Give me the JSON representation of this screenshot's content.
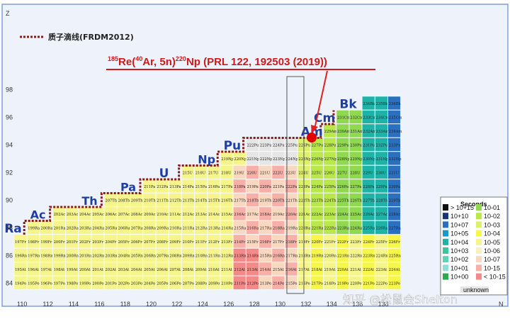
{
  "chart_data": {
    "type": "heatmap",
    "title": "",
    "xlabel": "N",
    "ylabel": "Z",
    "x_ticks": [
      "110",
      "112",
      "114",
      "116",
      "118",
      "120",
      "122",
      "124",
      "126",
      "128",
      "130",
      "132",
      "134",
      "136",
      "138"
    ],
    "y_ticks": [
      "84",
      "86",
      "88",
      "90",
      "92",
      "94",
      "96",
      "98"
    ],
    "highlight_tick": "124",
    "legend_title": "Seconds",
    "legend_entries": [
      {
        "label": "> 10+15",
        "color": "#111111"
      },
      {
        "label": "10+10",
        "color": "#17347a"
      },
      {
        "label": "10+07",
        "color": "#2a6fc0"
      },
      {
        "label": "10+05",
        "color": "#1a98c8"
      },
      {
        "label": "10+04",
        "color": "#1fb3a8"
      },
      {
        "label": "10+03",
        "color": "#3cc79a"
      },
      {
        "label": "10+02",
        "color": "#5fd3b8"
      },
      {
        "label": "10+01",
        "color": "#8fdcd8"
      },
      {
        "label": "10+00",
        "color": "#2ea84a"
      },
      {
        "label": "10-01",
        "color": "#8fd84f"
      },
      {
        "label": "10-02",
        "color": "#b9e84a"
      },
      {
        "label": "10-03",
        "color": "#ddf06a"
      },
      {
        "label": "10-04",
        "color": "#f7f74a"
      },
      {
        "label": "10-05",
        "color": "#f5f58c"
      },
      {
        "label": "10-06",
        "color": "#f8f0c0"
      },
      {
        "label": "10-07",
        "color": "#f8d8c0"
      },
      {
        "label": "10-15",
        "color": "#f6b0a8"
      },
      {
        "label": "< 10-15",
        "color": "#f28a8a"
      },
      {
        "label": "unknown",
        "color": "#e6e6e6"
      }
    ],
    "elements": [
      {
        "name": "Ra",
        "z": 88
      },
      {
        "name": "Ac",
        "z": 89
      },
      {
        "name": "Th",
        "z": 90
      },
      {
        "name": "Pa",
        "z": 91
      },
      {
        "name": "U",
        "z": 92
      },
      {
        "name": "Np",
        "z": 93
      },
      {
        "name": "Pu",
        "z": 94
      },
      {
        "name": "Am",
        "z": 95
      },
      {
        "name": "Cm",
        "z": 96
      },
      {
        "name": "Bk",
        "z": 97
      }
    ],
    "annotations": {
      "dripline_legend": "质子滴线(FRDM2012)",
      "reaction": "185Re(40Ar, 5n)220Np (PRL 122, 192503 (2019))",
      "reaction_parts": {
        "a": "185",
        "b": "Re(",
        "c": "40",
        "d": "Ar, 5n)",
        "e": "220",
        "f": "Np (PRL 122, 192503 (2019))"
      },
      "watermark": "知乎 @松鼠会Shelton"
    }
  },
  "colors": {
    "dripline": "#8b1a1a",
    "arrow": "#e02020",
    "np_marker": "#e00000",
    "bg_frame": "#7fa0d8"
  }
}
